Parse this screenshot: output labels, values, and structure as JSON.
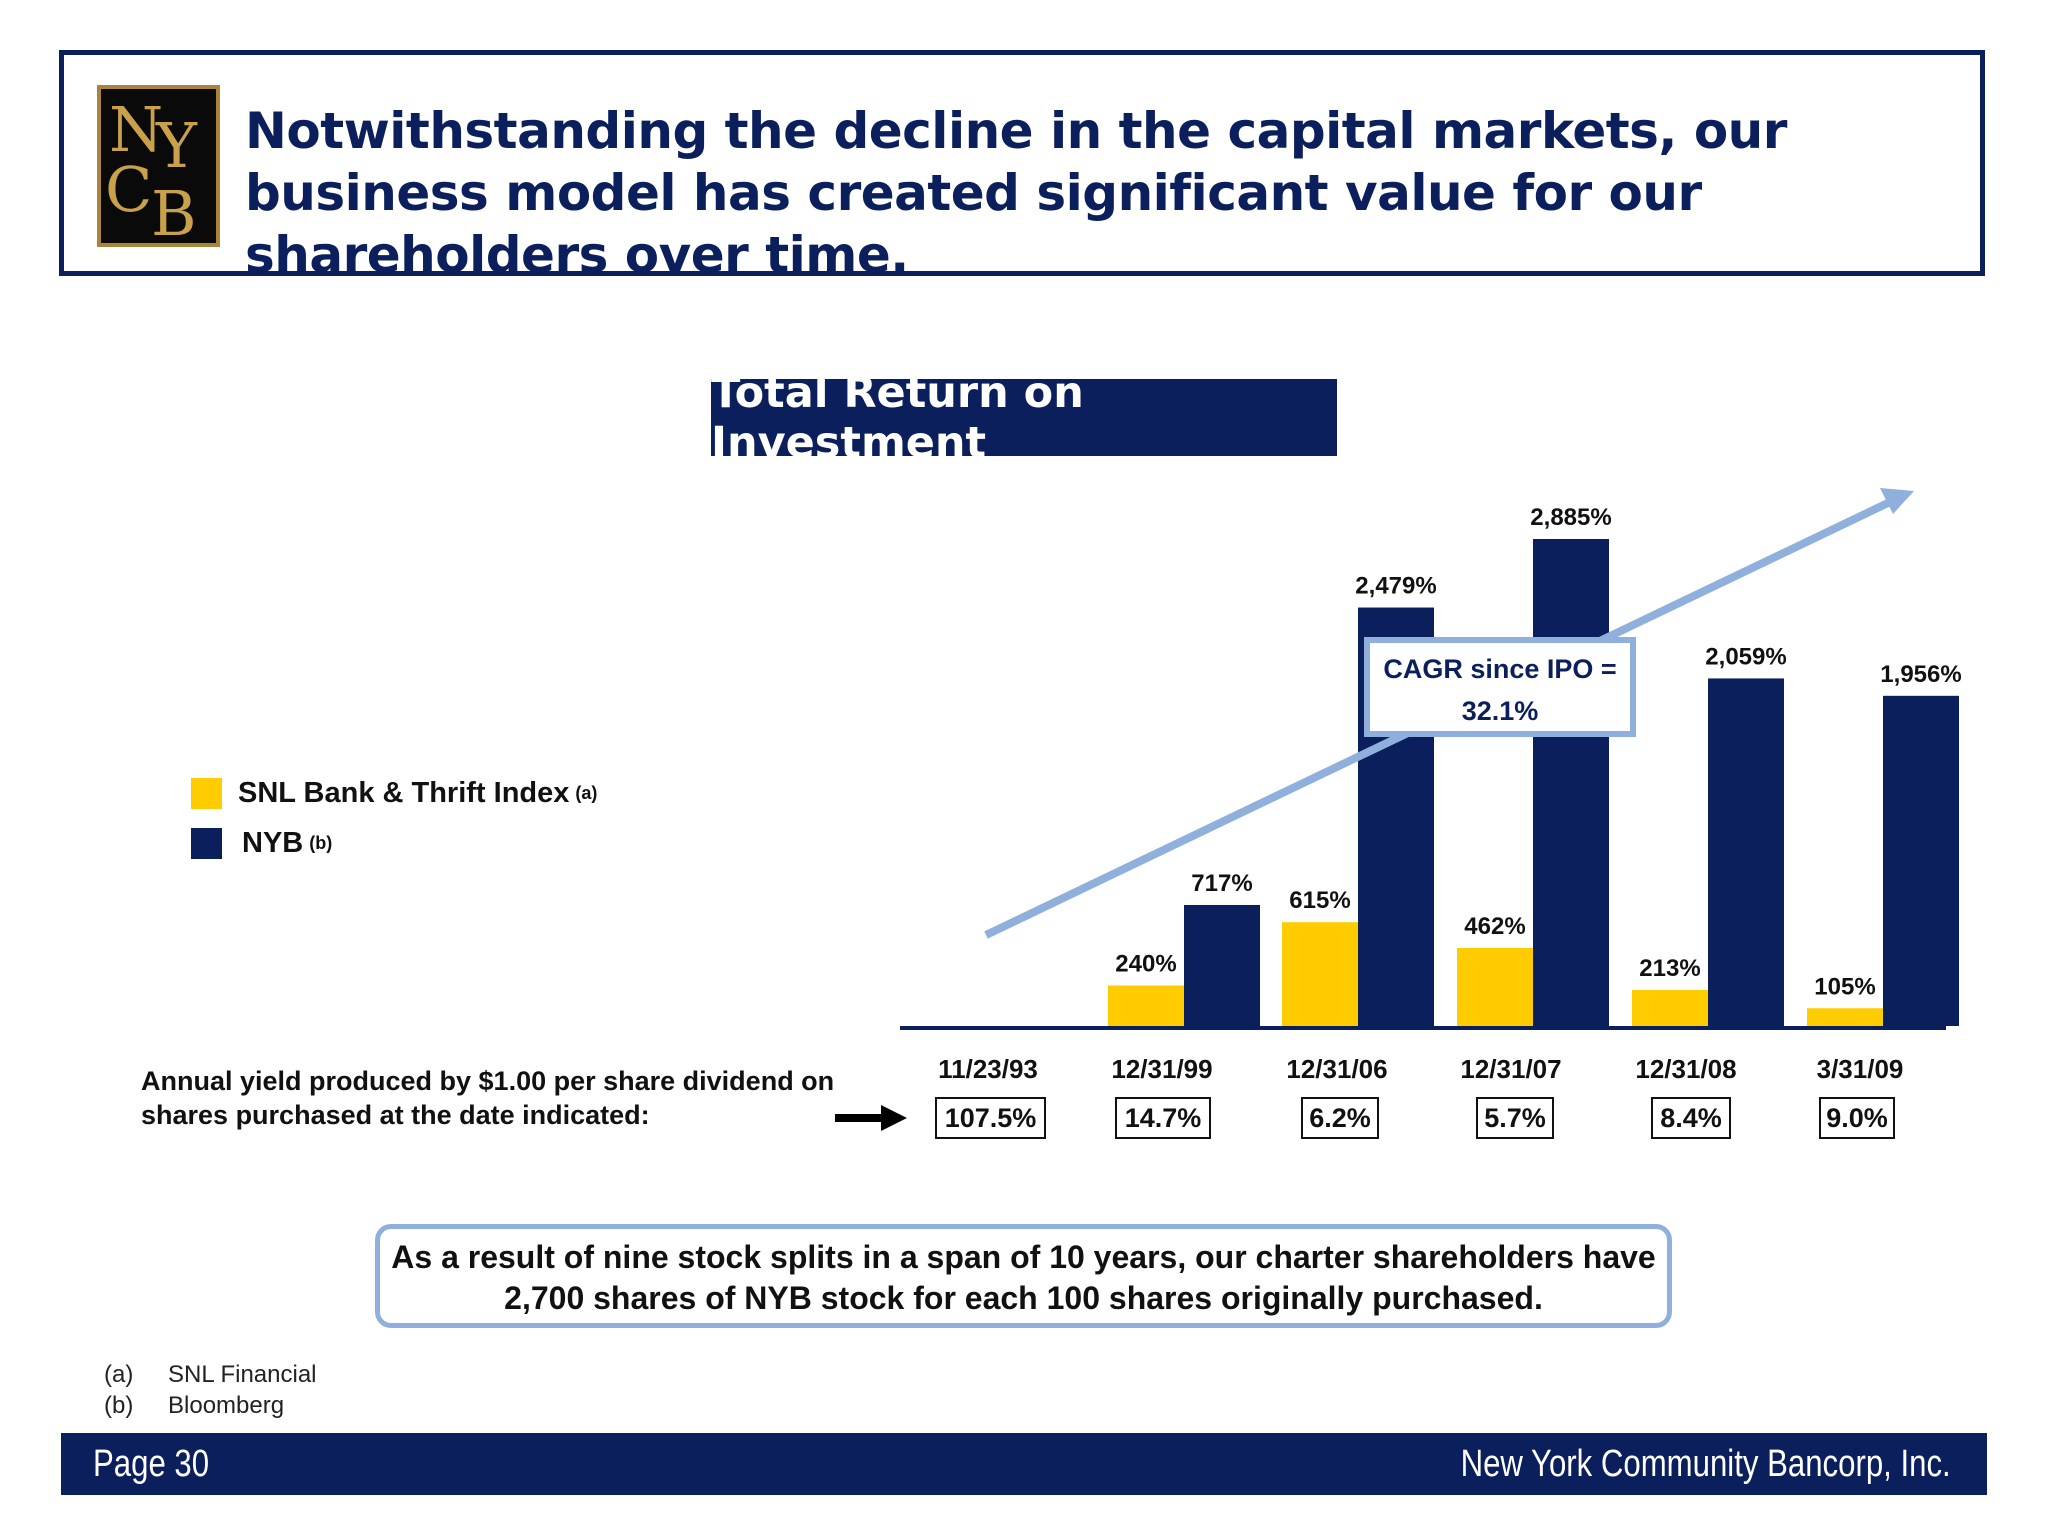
{
  "header": {
    "headline": "Notwithstanding the decline in the capital markets, our business model has created significant value for our shareholders over time.",
    "logo_letters": "NYCB"
  },
  "chart_title": "Total Return on Investment",
  "legend": [
    {
      "label": "SNL Bank & Thrift Index",
      "footnote": "(a)",
      "color": "#ffcc00"
    },
    {
      "label": "NYB",
      "footnote": "(b)",
      "color": "#0b1f5c"
    }
  ],
  "cagr": {
    "line1": "CAGR since IPO =",
    "line2": "32.1%"
  },
  "yield_caption": "Annual yield produced by $1.00 per share dividend on shares purchased at the date indicated:",
  "yields": [
    "107.5%",
    "14.7%",
    "6.2%",
    "5.7%",
    "8.4%",
    "9.0%"
  ],
  "note": "As a result of nine stock splits in a span of 10 years, our charter shareholders have 2,700 shares of NYB stock for each 100 shares originally purchased.",
  "footnotes": [
    {
      "letter": "(a)",
      "text": "SNL Financial"
    },
    {
      "letter": "(b)",
      "text": "Bloomberg"
    }
  ],
  "footer": {
    "page": "Page 30",
    "company": "New York Community Bancorp, Inc."
  },
  "colors": {
    "navy": "#0b1f5c",
    "gold": "#ffcc00",
    "arrow_blue": "#8fb0dd"
  },
  "chart_data": {
    "type": "bar",
    "title": "Total Return on Investment",
    "categories": [
      "11/23/93",
      "12/31/99",
      "12/31/06",
      "12/31/07",
      "12/31/08",
      "3/31/09"
    ],
    "series": [
      {
        "name": "SNL Bank & Thrift Index",
        "values": [
          null,
          240,
          615,
          462,
          213,
          105
        ],
        "labels": [
          "",
          "240%",
          "615%",
          "462%",
          "213%",
          "105%"
        ],
        "color": "#ffcc00"
      },
      {
        "name": "NYB",
        "values": [
          null,
          717,
          2479,
          2885,
          2059,
          1956
        ],
        "labels": [
          "",
          "717%",
          "2,479%",
          "2,885%",
          "2,059%",
          "1,956%"
        ],
        "color": "#0b1f5c"
      }
    ],
    "unit": "%",
    "ylim": [
      0,
      2885
    ],
    "grid": false,
    "legend_position": "left"
  }
}
